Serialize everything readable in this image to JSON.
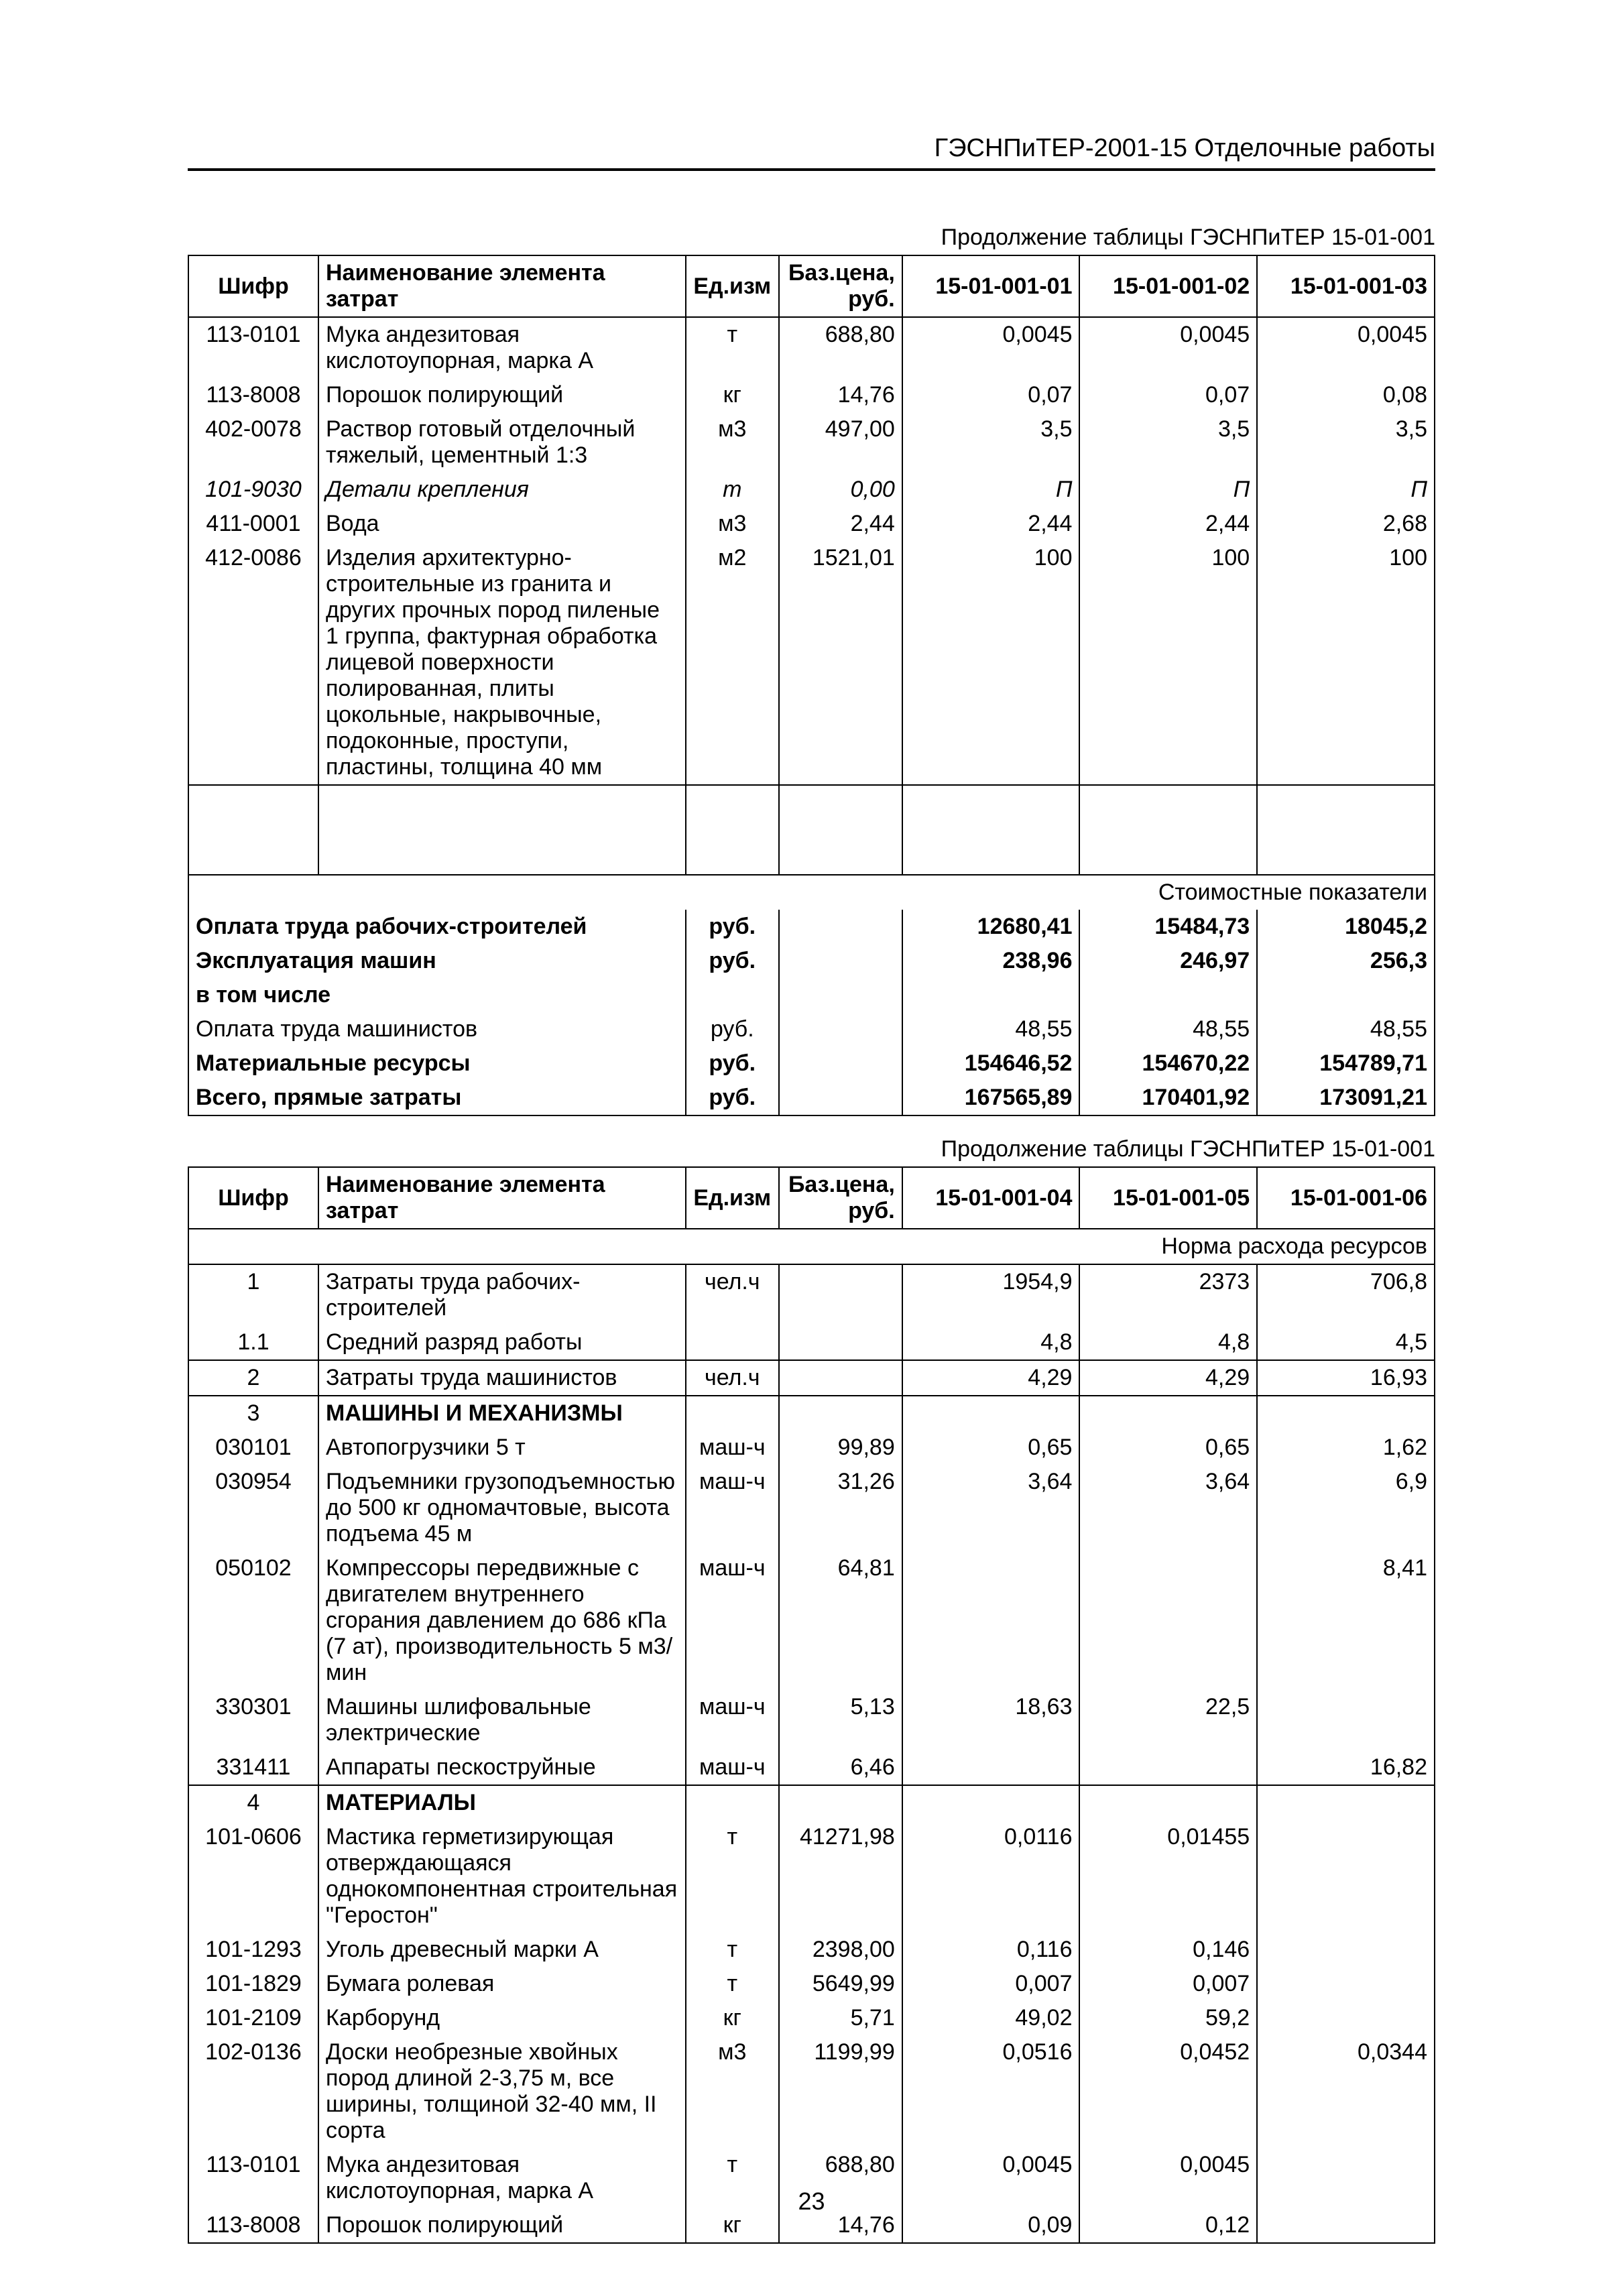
{
  "header_title": "ГЭСНПиТЕР-2001-15 Отделочные работы",
  "page_number": "23",
  "continuation_text": "Продолжение таблицы ГЭСНПиТЕР 15-01-001",
  "table1": {
    "columns": [
      "Шифр",
      "Наименование элемента затрат",
      "Ед.изм",
      "Баз.цена, руб.",
      "15-01-001-01",
      "15-01-001-02",
      "15-01-001-03"
    ],
    "rows": [
      {
        "code": "113-0101",
        "name": "Мука андезитовая кислотоупорная, марка А",
        "unit": "т",
        "price": "688,80",
        "v1": "0,0045",
        "v2": "0,0045",
        "v3": "0,0045"
      },
      {
        "code": "113-8008",
        "name": "Порошок полирующий",
        "unit": "кг",
        "price": "14,76",
        "v1": "0,07",
        "v2": "0,07",
        "v3": "0,08"
      },
      {
        "code": "402-0078",
        "name": "Раствор готовый отделочный тяжелый, цементный 1:3",
        "unit": "м3",
        "price": "497,00",
        "v1": "3,5",
        "v2": "3,5",
        "v3": "3,5"
      },
      {
        "code": "101-9030",
        "name": "Детали крепления",
        "unit": "т",
        "price": "0,00",
        "v1": "П",
        "v2": "П",
        "v3": "П",
        "italic": true
      },
      {
        "code": "411-0001",
        "name": "Вода",
        "unit": "м3",
        "price": "2,44",
        "v1": "2,44",
        "v2": "2,44",
        "v3": "2,68"
      },
      {
        "code": "412-0086",
        "name": "Изделия архитектурно-строительные из гранита и других прочных пород пиленые 1 группа, фактурная обработка лицевой поверхности полированная, плиты цокольные, накрывочные, подоконные, проступи, пластины, толщина 40 мм",
        "unit": "м2",
        "price": "1521,01",
        "v1": "100",
        "v2": "100",
        "v3": "100"
      }
    ],
    "cost_label": "Стоимостные показатели",
    "cost_rows": [
      {
        "label": "Оплата труда рабочих-строителей",
        "unit": "руб.",
        "v1": "12680,41",
        "v2": "15484,73",
        "v3": "18045,2",
        "bold": true
      },
      {
        "label": "Эксплуатация машин",
        "unit": "руб.",
        "v1": "238,96",
        "v2": "246,97",
        "v3": "256,3",
        "bold": true
      },
      {
        "label": "в том числе",
        "unit": "",
        "v1": "",
        "v2": "",
        "v3": "",
        "bold": true
      },
      {
        "label": "Оплата труда машинистов",
        "unit": "руб.",
        "v1": "48,55",
        "v2": "48,55",
        "v3": "48,55",
        "bold": false
      },
      {
        "label": "Материальные ресурсы",
        "unit": "руб.",
        "v1": "154646,52",
        "v2": "154670,22",
        "v3": "154789,71",
        "bold": true
      },
      {
        "label": "Всего, прямые затраты",
        "unit": "руб.",
        "v1": "167565,89",
        "v2": "170401,92",
        "v3": "173091,21",
        "bold": true
      }
    ]
  },
  "table2": {
    "columns": [
      "Шифр",
      "Наименование элемента затрат",
      "Ед.изм",
      "Баз.цена, руб.",
      "15-01-001-04",
      "15-01-001-05",
      "15-01-001-06"
    ],
    "norm_label": "Норма расхода ресурсов",
    "rows": [
      {
        "code": "1",
        "name": "Затраты труда рабочих-строителей",
        "unit": "чел.ч",
        "price": "",
        "v1": "1954,9",
        "v2": "2373",
        "v3": "706,8",
        "tb": true
      },
      {
        "code": "1.1",
        "name": "Средний разряд работы",
        "unit": "",
        "price": "",
        "v1": "4,8",
        "v2": "4,8",
        "v3": "4,5",
        "bb": true
      },
      {
        "code": "2",
        "name": "Затраты труда машинистов",
        "unit": "чел.ч",
        "price": "",
        "v1": "4,29",
        "v2": "4,29",
        "v3": "16,93",
        "tb": true,
        "bb": true
      },
      {
        "code": "3",
        "name": "МАШИНЫ И МЕХАНИЗМЫ",
        "unit": "",
        "price": "",
        "v1": "",
        "v2": "",
        "v3": "",
        "bold": true,
        "tb": true
      },
      {
        "code": "030101",
        "name": "Автопогрузчики 5 т",
        "unit": "маш-ч",
        "price": "99,89",
        "v1": "0,65",
        "v2": "0,65",
        "v3": "1,62"
      },
      {
        "code": "030954",
        "name": "Подъемники грузоподъемностью до 500 кг одномачтовые, высота подъема 45 м",
        "unit": "маш-ч",
        "price": "31,26",
        "v1": "3,64",
        "v2": "3,64",
        "v3": "6,9"
      },
      {
        "code": "050102",
        "name": "Компрессоры передвижные с двигателем внутреннего сгорания давлением до 686 кПа (7 ат), производительность 5 м3/мин",
        "unit": "маш-ч",
        "price": "64,81",
        "v1": "",
        "v2": "",
        "v3": "8,41"
      },
      {
        "code": "330301",
        "name": "Машины шлифовальные электрические",
        "unit": "маш-ч",
        "price": "5,13",
        "v1": "18,63",
        "v2": "22,5",
        "v3": ""
      },
      {
        "code": "331411",
        "name": "Аппараты пескоструйные",
        "unit": "маш-ч",
        "price": "6,46",
        "v1": "",
        "v2": "",
        "v3": "16,82",
        "bb": true
      },
      {
        "code": "4",
        "name": "МАТЕРИАЛЫ",
        "unit": "",
        "price": "",
        "v1": "",
        "v2": "",
        "v3": "",
        "bold": true,
        "tb": true
      },
      {
        "code": "101-0606",
        "name": "Мастика герметизирующая отверждающаяся однокомпонентная строительная \"Геростон\"",
        "unit": "т",
        "price": "41271,98",
        "v1": "0,0116",
        "v2": "0,01455",
        "v3": ""
      },
      {
        "code": "101-1293",
        "name": "Уголь древесный марки А",
        "unit": "т",
        "price": "2398,00",
        "v1": "0,116",
        "v2": "0,146",
        "v3": ""
      },
      {
        "code": "101-1829",
        "name": "Бумага ролевая",
        "unit": "т",
        "price": "5649,99",
        "v1": "0,007",
        "v2": "0,007",
        "v3": ""
      },
      {
        "code": "101-2109",
        "name": "Карборунд",
        "unit": "кг",
        "price": "5,71",
        "v1": "49,02",
        "v2": "59,2",
        "v3": ""
      },
      {
        "code": "102-0136",
        "name": "Доски необрезные хвойных пород длиной 2-3,75 м, все ширины, толщиной 32-40 мм, II сорта",
        "unit": "м3",
        "price": "1199,99",
        "v1": "0,0516",
        "v2": "0,0452",
        "v3": "0,0344"
      },
      {
        "code": "113-0101",
        "name": "Мука андезитовая кислотоупорная, марка А",
        "unit": "т",
        "price": "688,80",
        "v1": "0,0045",
        "v2": "0,0045",
        "v3": ""
      },
      {
        "code": "113-8008",
        "name": "Порошок полирующий",
        "unit": "кг",
        "price": "14,76",
        "v1": "0,09",
        "v2": "0,12",
        "v3": "",
        "bb": true
      }
    ]
  }
}
